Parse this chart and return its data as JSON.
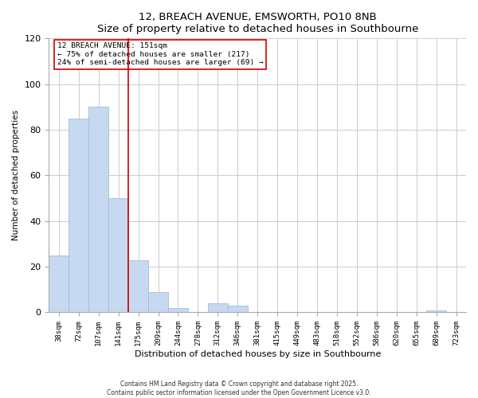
{
  "title_line1": "12, BREACH AVENUE, EMSWORTH, PO10 8NB",
  "title_line2": "Size of property relative to detached houses in Southbourne",
  "xlabel": "Distribution of detached houses by size in Southbourne",
  "ylabel": "Number of detached properties",
  "bar_labels": [
    "38sqm",
    "72sqm",
    "107sqm",
    "141sqm",
    "175sqm",
    "209sqm",
    "244sqm",
    "278sqm",
    "312sqm",
    "346sqm",
    "381sqm",
    "415sqm",
    "449sqm",
    "483sqm",
    "518sqm",
    "552sqm",
    "586sqm",
    "620sqm",
    "655sqm",
    "689sqm",
    "723sqm"
  ],
  "bar_values": [
    25,
    85,
    90,
    50,
    23,
    9,
    2,
    0,
    4,
    3,
    0,
    0,
    0,
    0,
    0,
    0,
    0,
    0,
    0,
    1,
    0
  ],
  "bar_color": "#c6d9f1",
  "bar_edge_color": "#a0bfdf",
  "vline_x": 3.5,
  "vline_color": "#cc0000",
  "ylim": [
    0,
    120
  ],
  "yticks": [
    0,
    20,
    40,
    60,
    80,
    100,
    120
  ],
  "annotation_title": "12 BREACH AVENUE: 151sqm",
  "annotation_line2": "← 75% of detached houses are smaller (217)",
  "annotation_line3": "24% of semi-detached houses are larger (69) →",
  "footnote1": "Contains HM Land Registry data © Crown copyright and database right 2025.",
  "footnote2": "Contains public sector information licensed under the Open Government Licence v3.0.",
  "grid_color": "#cccccc"
}
